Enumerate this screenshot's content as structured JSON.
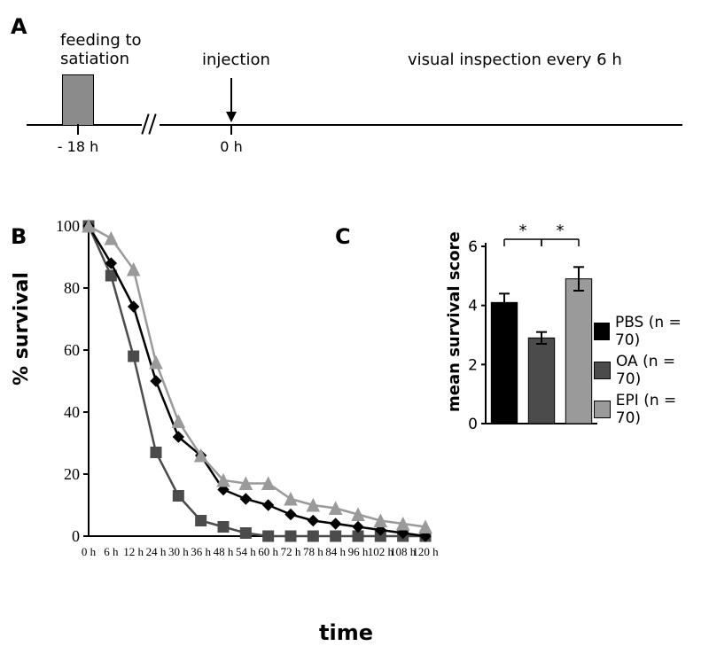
{
  "panelLabels": {
    "A": "A",
    "B": "B",
    "C": "C"
  },
  "panelA": {
    "feedingText": "feeding to\nsatiation",
    "injectionText": "injection",
    "inspectionText": "visual inspection every 6 h",
    "tick_minus18": "- 18 h",
    "tick_0": "0 h",
    "boxColor": "#8b8b8b"
  },
  "panelB": {
    "ylabel": "% survival",
    "xlabel": "time",
    "ylim": [
      0,
      100
    ],
    "ytick_step": 20,
    "yticks": [
      0,
      20,
      40,
      60,
      80,
      100
    ],
    "xticks": [
      "0 h",
      "6 h",
      "12 h",
      "24 h",
      "30 h",
      "36 h",
      "48 h",
      "54 h",
      "60 h",
      "72 h",
      "78 h",
      "84 h",
      "96 h",
      "102 h",
      "108 h",
      "120 h"
    ],
    "grid_color": "#cfcfcf",
    "background_color": "#ffffff",
    "line_width": 2.5,
    "marker_size": 6,
    "series": {
      "PBS": {
        "label": "PBS (n = 70)",
        "color": "#000000",
        "marker": "diamond",
        "values": [
          100,
          88,
          74,
          50,
          32,
          26,
          15,
          12,
          10,
          7,
          5,
          4,
          3,
          2,
          1,
          0
        ]
      },
      "OA": {
        "label": "OA (n = 70)",
        "color": "#4b4b4b",
        "marker": "square",
        "values": [
          100,
          84,
          58,
          27,
          13,
          5,
          3,
          1,
          0,
          0,
          0,
          0,
          0,
          0,
          0,
          0
        ]
      },
      "EPI": {
        "label": "EPI (n = 70)",
        "color": "#9a9a9a",
        "marker": "triangle",
        "values": [
          100,
          96,
          86,
          56,
          37,
          26,
          18,
          17,
          17,
          12,
          10,
          9,
          7,
          5,
          4,
          3
        ]
      }
    }
  },
  "panelC": {
    "ylabel": "mean survival score",
    "ylim": [
      0,
      6
    ],
    "ytick_step": 2,
    "yticks": [
      0,
      2,
      4,
      6
    ],
    "bars": [
      {
        "key": "PBS",
        "label": "PBS (n = 70)",
        "value": 4.1,
        "err": 0.3,
        "color": "#000000"
      },
      {
        "key": "OA",
        "label": "OA (n = 70)",
        "value": 2.9,
        "err": 0.2,
        "color": "#4b4b4b"
      },
      {
        "key": "EPI",
        "label": "EPI (n = 70)",
        "value": 4.9,
        "err": 0.4,
        "color": "#9a9a9a"
      }
    ],
    "bar_width": 0.7,
    "significance_marker": "*",
    "sig_pairs": [
      [
        0,
        1
      ],
      [
        1,
        2
      ]
    ]
  }
}
